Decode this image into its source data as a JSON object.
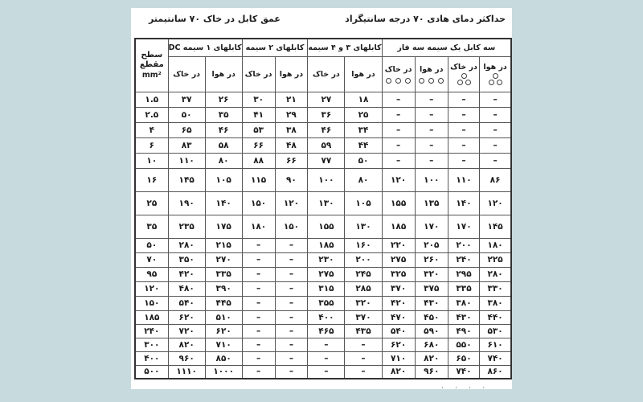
{
  "titles": {
    "right": "حداکثر دمای هادی ۷۰ درجه سانتیگراد",
    "left": "عمق کابل در خاک ۷۰ سانتیمتر"
  },
  "table": {
    "corner": {
      "line1": "سطح",
      "line2": "مقطع",
      "line3": "mm²"
    },
    "groups": [
      {
        "label": "کابلهای ۱ سیمه DC",
        "colspan": 2
      },
      {
        "label": "کابلهای ۲ سیمه",
        "colspan": 2
      },
      {
        "label": "کابلهای ۳ و ۴ سیمه",
        "colspan": 2
      },
      {
        "label": "سه کابل یک سیمه سه فاز",
        "colspan": 4
      }
    ],
    "subheaders": [
      {
        "label": "در خاک",
        "icon": ""
      },
      {
        "label": "در هوا",
        "icon": ""
      },
      {
        "label": "در خاک",
        "icon": ""
      },
      {
        "label": "در هوا",
        "icon": ""
      },
      {
        "label": "در خاک",
        "icon": ""
      },
      {
        "label": "در هوا",
        "icon": ""
      },
      {
        "label": "در خاک",
        "icon": "three-in-row"
      },
      {
        "label": "در هوا",
        "icon": "three-in-row"
      },
      {
        "label": "در خاک",
        "icon": "trefoil"
      },
      {
        "label": "در هوا",
        "icon": "trefoil"
      }
    ],
    "rows": [
      {
        "size": "۱.۵",
        "values": [
          "۳۷",
          "۲۶",
          "۳۰",
          "۲۱",
          "۲۷",
          "۱۸",
          "–",
          "–",
          "–",
          "–"
        ]
      },
      {
        "size": "۲.۵",
        "values": [
          "۵۰",
          "۳۵",
          "۴۱",
          "۲۹",
          "۳۶",
          "۲۵",
          "–",
          "–",
          "–",
          "–"
        ]
      },
      {
        "size": "۴",
        "values": [
          "۶۵",
          "۴۶",
          "۵۳",
          "۳۸",
          "۴۶",
          "۳۴",
          "–",
          "–",
          "–",
          "–"
        ]
      },
      {
        "size": "۶",
        "values": [
          "۸۳",
          "۵۸",
          "۶۶",
          "۴۸",
          "۵۹",
          "۴۴",
          "–",
          "–",
          "–",
          "–"
        ]
      },
      {
        "size": "۱۰",
        "values": [
          "۱۱۰",
          "۸۰",
          "۸۸",
          "۶۶",
          "۷۷",
          "۵۰",
          "–",
          "–",
          "–",
          "–"
        ]
      },
      {
        "size": "۱۶",
        "values": [
          "۱۴۵",
          "۱۰۵",
          "۱۱۵",
          "۹۰",
          "۱۰۰",
          "۸۰",
          "۱۲۰",
          "۱۰۰",
          "۱۱۰",
          "۸۶"
        ]
      },
      {
        "size": "۲۵",
        "values": [
          "۱۹۰",
          "۱۴۰",
          "۱۵۰",
          "۱۲۰",
          "۱۳۰",
          "۱۰۵",
          "۱۵۵",
          "۱۳۵",
          "۱۴۰",
          "۱۲۰"
        ]
      },
      {
        "size": "۳۵",
        "values": [
          "۲۳۵",
          "۱۷۵",
          "۱۸۰",
          "۱۵۰",
          "۱۵۵",
          "۱۳۰",
          "۱۸۵",
          "۱۷۰",
          "۱۷۰",
          "۱۴۵"
        ]
      },
      {
        "size": "۵۰",
        "values": [
          "۲۸۰",
          "۲۱۵",
          "–",
          "–",
          "۱۸۵",
          "۱۶۰",
          "۲۲۰",
          "۲۰۵",
          "۲۰۰",
          "۱۸۰"
        ]
      },
      {
        "size": "۷۰",
        "values": [
          "۳۵۰",
          "۲۷۰",
          "–",
          "–",
          "۲۳۰",
          "۲۰۰",
          "۲۷۵",
          "۲۶۰",
          "۲۴۰",
          "۲۲۵"
        ]
      },
      {
        "size": "۹۵",
        "values": [
          "۴۲۰",
          "۳۳۵",
          "–",
          "–",
          "۲۷۵",
          "۲۴۵",
          "۳۲۵",
          "۳۲۰",
          "۲۹۵",
          "۲۸۰"
        ]
      },
      {
        "size": "۱۲۰",
        "values": [
          "۴۸۰",
          "۳۹۰",
          "–",
          "–",
          "۳۱۵",
          "۲۸۵",
          "۳۷۰",
          "۳۷۵",
          "۳۳۵",
          "۳۳۰"
        ]
      },
      {
        "size": "۱۵۰",
        "values": [
          "۵۴۰",
          "۴۴۵",
          "–",
          "–",
          "۳۵۵",
          "۳۲۰",
          "۴۲۰",
          "۴۳۰",
          "۳۸۰",
          "۳۸۰"
        ]
      },
      {
        "size": "۱۸۵",
        "values": [
          "۶۲۰",
          "۵۱۰",
          "–",
          "–",
          "۴۰۰",
          "۳۷۰",
          "۴۷۰",
          "۴۵۰",
          "۴۳۰",
          "۴۴۰"
        ]
      },
      {
        "size": "۲۴۰",
        "values": [
          "۷۲۰",
          "۶۲۰",
          "–",
          "–",
          "۴۶۵",
          "۴۳۵",
          "۵۴۰",
          "۵۹۰",
          "۴۹۰",
          "۵۳۰"
        ]
      },
      {
        "size": "۳۰۰",
        "values": [
          "۸۲۰",
          "۷۱۰",
          "–",
          "–",
          "–",
          "–",
          "۶۲۰",
          "۶۸۰",
          "۵۵۰",
          "۶۱۰"
        ]
      },
      {
        "size": "۴۰۰",
        "values": [
          "۹۶۰",
          "۸۵۰",
          "–",
          "–",
          "–",
          "–",
          "۷۱۰",
          "۸۲۰",
          "۶۵۰",
          "۷۴۰"
        ]
      },
      {
        "size": "۵۰۰",
        "values": [
          "۱۱۱۰",
          "۱۰۰۰",
          "–",
          "–",
          "–",
          "–",
          "۸۲۰",
          "۹۶۰",
          "۷۴۰",
          "۸۶۰"
        ]
      }
    ]
  },
  "caption_clipped": "· · · ·",
  "colors": {
    "background": "#c7dbde",
    "panel": "#ffffff",
    "border_outer": "#333333",
    "border_inner": "#565656",
    "text": "#1b1b1b"
  }
}
